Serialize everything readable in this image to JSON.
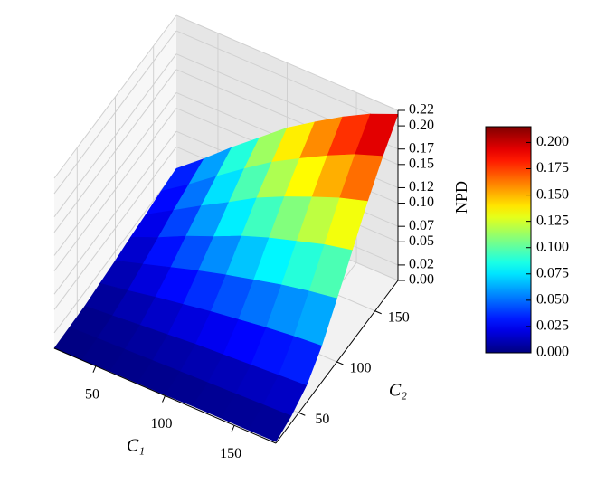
{
  "chart_data": {
    "type": "surface",
    "x_label": "C₁",
    "y_label": "C₂",
    "z_label": "NPD",
    "x": [
      20,
      40,
      60,
      80,
      100,
      120,
      140,
      160,
      180
    ],
    "y": [
      20,
      40,
      60,
      80,
      100,
      120,
      140,
      160,
      180
    ],
    "z": [
      [
        0.0,
        0.0,
        0.001,
        0.001,
        0.001,
        0.002,
        0.002,
        0.002,
        0.002
      ],
      [
        0.001,
        0.002,
        0.003,
        0.004,
        0.005,
        0.006,
        0.007,
        0.008,
        0.009
      ],
      [
        0.002,
        0.005,
        0.008,
        0.011,
        0.014,
        0.016,
        0.018,
        0.02,
        0.022
      ],
      [
        0.005,
        0.011,
        0.018,
        0.024,
        0.03,
        0.035,
        0.04,
        0.044,
        0.047
      ],
      [
        0.008,
        0.019,
        0.03,
        0.041,
        0.051,
        0.06,
        0.069,
        0.076,
        0.082
      ],
      [
        0.012,
        0.027,
        0.044,
        0.059,
        0.075,
        0.088,
        0.099,
        0.11,
        0.118
      ],
      [
        0.015,
        0.036,
        0.057,
        0.077,
        0.098,
        0.115,
        0.13,
        0.144,
        0.155
      ],
      [
        0.019,
        0.043,
        0.069,
        0.094,
        0.118,
        0.138,
        0.157,
        0.174,
        0.187
      ],
      [
        0.022,
        0.05,
        0.08,
        0.108,
        0.136,
        0.159,
        0.181,
        0.2,
        0.215
      ]
    ],
    "xlim": [
      20,
      180
    ],
    "ylim": [
      20,
      180
    ],
    "zlim": [
      0,
      0.22
    ],
    "xticks": [
      50,
      100,
      150
    ],
    "yticks": [
      50,
      100,
      150
    ],
    "zticks": [
      {
        "value": 0,
        "label": "0.00"
      },
      {
        "value": 0.02,
        "label": "0.02"
      },
      {
        "value": 0.05,
        "label": "0.05"
      },
      {
        "value": 0.07,
        "label": "0.07"
      },
      {
        "value": 0.1,
        "label": "0.10"
      },
      {
        "value": 0.12,
        "label": "0.12"
      },
      {
        "value": 0.15,
        "label": "0.15"
      },
      {
        "value": 0.17,
        "label": "0.17"
      },
      {
        "value": 0.2,
        "label": "0.20"
      },
      {
        "value": 0.22,
        "label": "0.22"
      }
    ],
    "colormap": "jet",
    "clim": [
      0,
      0.215
    ],
    "colorbar_ticks": [
      {
        "value": 0,
        "label": "0.000"
      },
      {
        "value": 0.025,
        "label": "0.025"
      },
      {
        "value": 0.05,
        "label": "0.050"
      },
      {
        "value": 0.075,
        "label": "0.075"
      },
      {
        "value": 0.1,
        "label": "0.100"
      },
      {
        "value": 0.125,
        "label": "0.125"
      },
      {
        "value": 0.15,
        "label": "0.150"
      },
      {
        "value": 0.175,
        "label": "0.175"
      },
      {
        "value": 0.2,
        "label": "0.200"
      }
    ],
    "grid": true
  }
}
